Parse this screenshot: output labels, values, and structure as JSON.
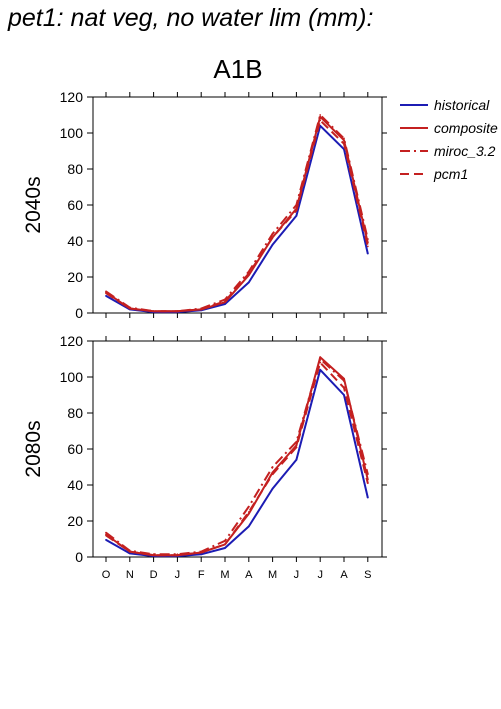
{
  "title": "pet1: nat veg, no water lim (mm):",
  "scenario": "A1B",
  "colors": {
    "historical": "#1c1cb4",
    "future": "#c42020"
  },
  "legend": [
    "historical",
    "composite",
    "miroc_3.2",
    "pcm1"
  ],
  "chart_data": [
    {
      "type": "line",
      "panel_label": "2040s",
      "categories": [
        "O",
        "N",
        "D",
        "J",
        "F",
        "M",
        "A",
        "M",
        "J",
        "J",
        "A",
        "S"
      ],
      "ylim": [
        0,
        120
      ],
      "yticks": [
        0,
        20,
        40,
        60,
        80,
        100,
        120
      ],
      "series": [
        {
          "name": "historical",
          "style": "solid",
          "color": "#1c1cb4",
          "values": [
            9.5,
            2,
            0.5,
            0.5,
            1.5,
            5,
            17,
            38,
            54,
            104,
            91,
            33
          ]
        },
        {
          "name": "composite",
          "style": "solid",
          "color": "#c42020",
          "values": [
            11.5,
            2.5,
            1,
            1,
            2,
            6,
            21,
            42,
            58,
            109,
            96,
            39
          ]
        },
        {
          "name": "miroc_3.2",
          "style": "dashdot",
          "color": "#c42020",
          "values": [
            12,
            3,
            1,
            1,
            2.5,
            7.5,
            23,
            44,
            60,
            110,
            97,
            41
          ]
        },
        {
          "name": "pcm1",
          "style": "dashed",
          "color": "#c42020",
          "values": [
            11,
            2.5,
            1,
            1,
            2,
            6.5,
            22,
            42,
            57,
            107,
            94,
            37
          ]
        }
      ]
    },
    {
      "type": "line",
      "panel_label": "2080s",
      "categories": [
        "O",
        "N",
        "D",
        "J",
        "F",
        "M",
        "A",
        "M",
        "J",
        "J",
        "A",
        "S"
      ],
      "ylim": [
        0,
        120
      ],
      "yticks": [
        0,
        20,
        40,
        60,
        80,
        100,
        120
      ],
      "series": [
        {
          "name": "historical",
          "style": "solid",
          "color": "#1c1cb4",
          "values": [
            9.5,
            2,
            0.5,
            0.5,
            1.5,
            5,
            17,
            38,
            54,
            104,
            90,
            33
          ]
        },
        {
          "name": "composite",
          "style": "solid",
          "color": "#c42020",
          "values": [
            12.5,
            3,
            1,
            1,
            2.5,
            7,
            24,
            47,
            62,
            111,
            99,
            43
          ]
        },
        {
          "name": "miroc_3.2",
          "style": "dashdot",
          "color": "#c42020",
          "values": [
            13.5,
            3.5,
            1.5,
            1.5,
            3,
            9,
            28,
            50,
            64,
            110,
            98,
            46
          ]
        },
        {
          "name": "pcm1",
          "style": "dashed",
          "color": "#c42020",
          "values": [
            12,
            3,
            1,
            1,
            2.5,
            7,
            25,
            46,
            61,
            108,
            94,
            41
          ]
        }
      ]
    }
  ]
}
